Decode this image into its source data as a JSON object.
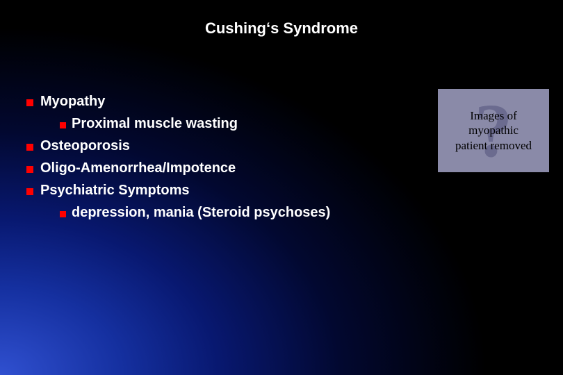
{
  "title": "Cushing‘s Syndrome",
  "bullets": [
    {
      "text": "Myopathy",
      "level": 0
    },
    {
      "text": "Proximal muscle wasting",
      "level": 1
    },
    {
      "text": "Osteoporosis",
      "level": 0
    },
    {
      "text": "Oligo-Amenorrhea/Impotence",
      "level": 0
    },
    {
      "text": "Psychiatric Symptoms",
      "level": 0
    },
    {
      "text": "depression, mania  (Steroid psychoses)",
      "level": 1
    }
  ],
  "imagebox": {
    "line1": "Images of",
    "line2": "myopathic",
    "line3": "patient removed"
  },
  "colors": {
    "bullet_marker": "#ff0000",
    "text": "#ffffff",
    "title": "#ffffff",
    "imagebox_bg": "#8a8aa8",
    "imagebox_text": "#000000",
    "qmark": "#6b6b8f"
  }
}
